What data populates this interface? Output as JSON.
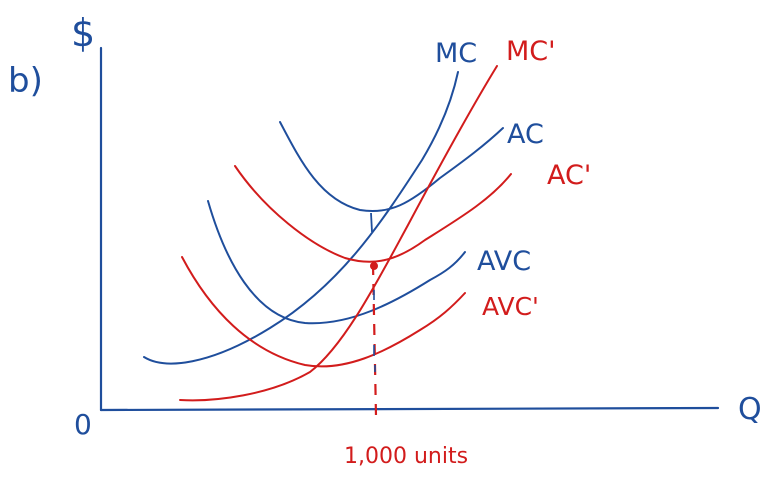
{
  "part_label": "b)",
  "y_axis_label": "$",
  "x_axis_label": "Q",
  "origin_label": "0",
  "quantity_label": "1,000 units",
  "colors": {
    "original": "#1f4e9c",
    "shifted": "#d21c1c"
  },
  "curves": [
    {
      "id": "mc",
      "label": "MC",
      "color": "blue"
    },
    {
      "id": "ac",
      "label": "AC",
      "color": "blue"
    },
    {
      "id": "avc",
      "label": "AVC",
      "color": "blue"
    },
    {
      "id": "mc-prime",
      "label": "MC'",
      "color": "red"
    },
    {
      "id": "ac-prime",
      "label": "AC'",
      "color": "red"
    },
    {
      "id": "avc-prime",
      "label": "AVC'",
      "color": "red"
    }
  ]
}
